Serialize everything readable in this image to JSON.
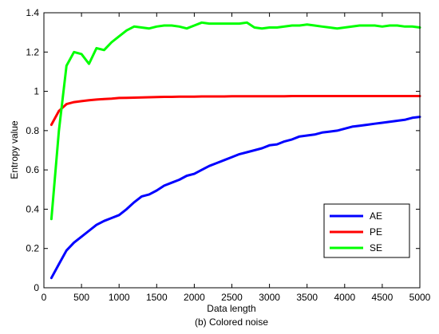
{
  "chart_data": {
    "type": "line",
    "caption": "(b) Colored noise",
    "xlabel": "Data length",
    "ylabel": "Entropy value",
    "xlim": [
      0,
      5000
    ],
    "ylim": [
      0,
      1.4
    ],
    "xticks": [
      0,
      500,
      1000,
      1500,
      2000,
      2500,
      3000,
      3500,
      4000,
      4500,
      5000
    ],
    "yticks": [
      0,
      0.2,
      0.4,
      0.6,
      0.8,
      1,
      1.2,
      1.4
    ],
    "xtick_labels": [
      "0",
      "500",
      "1000",
      "1500",
      "2000",
      "2500",
      "3000",
      "3500",
      "4000",
      "4500",
      "5000"
    ],
    "ytick_labels": [
      "0",
      "0.2",
      "0.4",
      "0.6",
      "0.8",
      "1",
      "1.2",
      "1.4"
    ],
    "grid": false,
    "legend_position": "bottom-right",
    "x": [
      100,
      200,
      300,
      400,
      500,
      600,
      700,
      800,
      900,
      1000,
      1100,
      1200,
      1300,
      1400,
      1500,
      1600,
      1700,
      1800,
      1900,
      2000,
      2100,
      2200,
      2300,
      2400,
      2500,
      2600,
      2700,
      2800,
      2900,
      3000,
      3100,
      3200,
      3300,
      3400,
      3500,
      3600,
      3700,
      3800,
      3900,
      4000,
      4100,
      4200,
      4300,
      4400,
      4500,
      4600,
      4700,
      4800,
      4900,
      5000
    ],
    "series": [
      {
        "name": "AE",
        "color": "#0000ff",
        "values": [
          0.05,
          0.12,
          0.19,
          0.23,
          0.26,
          0.29,
          0.32,
          0.34,
          0.355,
          0.37,
          0.4,
          0.435,
          0.465,
          0.475,
          0.495,
          0.52,
          0.535,
          0.55,
          0.57,
          0.58,
          0.6,
          0.62,
          0.635,
          0.65,
          0.665,
          0.68,
          0.69,
          0.7,
          0.71,
          0.725,
          0.73,
          0.745,
          0.755,
          0.77,
          0.775,
          0.78,
          0.79,
          0.795,
          0.8,
          0.81,
          0.82,
          0.825,
          0.83,
          0.835,
          0.84,
          0.845,
          0.85,
          0.855,
          0.865,
          0.87
        ]
      },
      {
        "name": "PE",
        "color": "#ff0000",
        "values": [
          0.83,
          0.9,
          0.935,
          0.945,
          0.95,
          0.955,
          0.958,
          0.961,
          0.963,
          0.966,
          0.967,
          0.968,
          0.969,
          0.97,
          0.971,
          0.972,
          0.972,
          0.973,
          0.973,
          0.973,
          0.974,
          0.974,
          0.974,
          0.974,
          0.975,
          0.975,
          0.975,
          0.975,
          0.975,
          0.975,
          0.975,
          0.975,
          0.976,
          0.976,
          0.976,
          0.976,
          0.976,
          0.976,
          0.976,
          0.976,
          0.976,
          0.976,
          0.976,
          0.976,
          0.976,
          0.976,
          0.976,
          0.976,
          0.976,
          0.976
        ]
      },
      {
        "name": "SE",
        "color": "#00ff00",
        "values": [
          0.35,
          0.8,
          1.13,
          1.2,
          1.19,
          1.14,
          1.22,
          1.21,
          1.25,
          1.28,
          1.31,
          1.33,
          1.325,
          1.32,
          1.33,
          1.335,
          1.335,
          1.33,
          1.32,
          1.335,
          1.35,
          1.345,
          1.345,
          1.345,
          1.345,
          1.345,
          1.35,
          1.325,
          1.32,
          1.325,
          1.325,
          1.33,
          1.335,
          1.335,
          1.34,
          1.335,
          1.33,
          1.325,
          1.32,
          1.325,
          1.33,
          1.335,
          1.335,
          1.335,
          1.33,
          1.335,
          1.335,
          1.33,
          1.33,
          1.325
        ]
      }
    ]
  }
}
